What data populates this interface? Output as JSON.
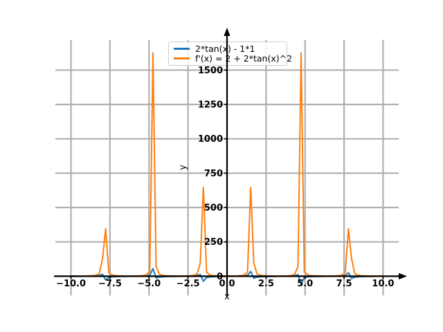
{
  "figure": {
    "background": "#ffffff",
    "title": ""
  },
  "chart_data": {
    "type": "line",
    "title": "",
    "xlabel": "x",
    "ylabel": "y",
    "xlim": [
      -11,
      11
    ],
    "ylim": [
      -140,
      1720
    ],
    "grid": true,
    "grid_color": "#b0b0b0",
    "axis_color": "#000000",
    "xticks": [
      -10,
      -7.5,
      -5,
      -2.5,
      0,
      2.5,
      5,
      7.5,
      10
    ],
    "xtick_labels": [
      "−10.0",
      "−7.5",
      "−5.0",
      "−2.5",
      "0.0",
      "2.5",
      "5.0",
      "7.5",
      "10.0"
    ],
    "yticks": [
      0,
      250,
      500,
      750,
      1000,
      1250,
      1500
    ],
    "ytick_labels": [
      "0",
      "250",
      "500",
      "750",
      "1000",
      "1250",
      "1500"
    ],
    "legend": {
      "position": "upper center",
      "entries": [
        {
          "label": "2*tan(x) - 1*1",
          "color": "#1f77b4"
        },
        {
          "label": "f'(x) = 2 + 2*tan(x)^2",
          "color": "#ff7f0e"
        }
      ]
    },
    "series": [
      {
        "id": "blue",
        "name": "2*tan(x) - 1*1",
        "color": "#1f77b4",
        "expr_js": "2*tan(x)-1",
        "samples": {
          "domain": [
            -10,
            10
          ],
          "n": 100
        }
      },
      {
        "id": "orange",
        "name": "f'(x) = 2 + 2*tan(x)^2",
        "color": "#ff7f0e",
        "expr_js": "2+2*pow(tan(x),2)",
        "samples": {
          "domain": [
            -10,
            10
          ],
          "n": 100
        }
      }
    ],
    "visible_peaks": {
      "orange_peak_x": [
        -7.854,
        -4.712,
        -1.571,
        1.571,
        4.712,
        7.854
      ],
      "orange_peak_y": [
        350,
        1650,
        650,
        650,
        1640,
        350
      ],
      "note": "peaks occur at odd multiples of pi/2; blue curve shows small bumps of about +55 before and -55 after each asymptote"
    }
  }
}
